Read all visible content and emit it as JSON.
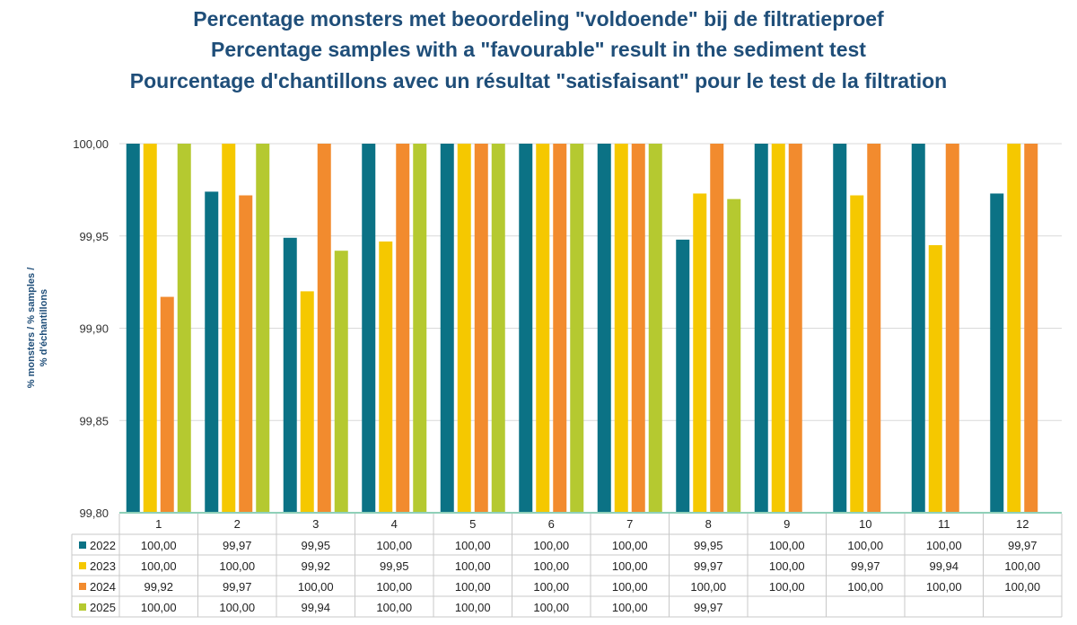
{
  "title": {
    "line1": "Percentage monsters met beoordeling \"voldoende\" bij de filtratieproef",
    "line2": "Percentage samples with a \"favourable\" result in the sediment test",
    "line3": "Pourcentage d'chantillons avec un résultat \"satisfaisant\" pour le test de la filtration"
  },
  "ylabel": {
    "line1": "% monsters / % samples /",
    "line2": "% d'échantillons"
  },
  "chart_data": {
    "type": "bar",
    "categories": [
      "1",
      "2",
      "3",
      "4",
      "5",
      "6",
      "7",
      "8",
      "9",
      "10",
      "11",
      "12"
    ],
    "ylim": [
      99.8,
      100.0
    ],
    "yticks": [
      {
        "value": 100.0,
        "label": "100,00"
      },
      {
        "value": 99.95,
        "label": "99,95"
      },
      {
        "value": 99.9,
        "label": "99,90"
      },
      {
        "value": 99.85,
        "label": "99,85"
      },
      {
        "value": 99.8,
        "label": "99,80"
      }
    ],
    "series": [
      {
        "name": "2022",
        "color": "#0b7285",
        "values": [
          100.0,
          99.974,
          99.949,
          100.0,
          100.0,
          100.0,
          100.0,
          99.948,
          100.0,
          100.0,
          100.0,
          99.973
        ],
        "labels": [
          "100,00",
          "99,97",
          "99,95",
          "100,00",
          "100,00",
          "100,00",
          "100,00",
          "99,95",
          "100,00",
          "100,00",
          "100,00",
          "99,97"
        ]
      },
      {
        "name": "2023",
        "color": "#f5c800",
        "values": [
          100.0,
          100.0,
          99.92,
          99.947,
          100.0,
          100.0,
          100.0,
          99.973,
          100.0,
          99.972,
          99.945,
          100.0
        ],
        "labels": [
          "100,00",
          "100,00",
          "99,92",
          "99,95",
          "100,00",
          "100,00",
          "100,00",
          "99,97",
          "100,00",
          "99,97",
          "99,94",
          "100,00"
        ]
      },
      {
        "name": "2024",
        "color": "#f28b2e",
        "values": [
          99.917,
          99.972,
          100.0,
          100.0,
          100.0,
          100.0,
          100.0,
          100.0,
          100.0,
          100.0,
          100.0,
          100.0
        ],
        "labels": [
          "99,92",
          "99,97",
          "100,00",
          "100,00",
          "100,00",
          "100,00",
          "100,00",
          "100,00",
          "100,00",
          "100,00",
          "100,00",
          "100,00"
        ]
      },
      {
        "name": "2025",
        "color": "#b5c930",
        "values": [
          100.0,
          100.0,
          99.942,
          100.0,
          100.0,
          100.0,
          100.0,
          99.97,
          null,
          null,
          null,
          null
        ],
        "labels": [
          "100,00",
          "100,00",
          "99,94",
          "100,00",
          "100,00",
          "100,00",
          "100,00",
          "99,97",
          "",
          "",
          "",
          ""
        ]
      }
    ]
  }
}
